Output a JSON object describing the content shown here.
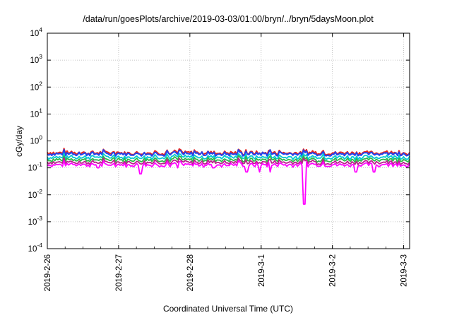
{
  "chart_data": {
    "type": "line",
    "title": "/data/run/goesPlots/archive/2019-03-03/01:00/bryn/../bryn/5daysMoon.plot",
    "xlabel": "Coordinated Universal Time (UTC)",
    "ylabel": "cGy/day",
    "yscale": "log",
    "ylim": [
      0.0001,
      10000
    ],
    "y_ticks": [
      {
        "value": 0.0001,
        "base": "10",
        "exp": "-4"
      },
      {
        "value": 0.001,
        "base": "10",
        "exp": "-3"
      },
      {
        "value": 0.01,
        "base": "10",
        "exp": "-2"
      },
      {
        "value": 0.1,
        "base": "10",
        "exp": "-1"
      },
      {
        "value": 1,
        "base": "10",
        "exp": "0"
      },
      {
        "value": 10,
        "base": "10",
        "exp": "1"
      },
      {
        "value": 100,
        "base": "10",
        "exp": "2"
      },
      {
        "value": 1000,
        "base": "10",
        "exp": "3"
      },
      {
        "value": 10000,
        "base": "10",
        "exp": "4"
      }
    ],
    "xlim": [
      "2019-02-26T00:00",
      "2019-03-03T02:00"
    ],
    "x_ticks": [
      {
        "value": "2019-02-26T00:00",
        "label": "2019-2-26"
      },
      {
        "value": "2019-02-27T00:00",
        "label": "2019-2-27"
      },
      {
        "value": "2019-02-28T00:00",
        "label": "2019-2-28"
      },
      {
        "value": "2019-03-01T00:00",
        "label": "2019-3-1"
      },
      {
        "value": "2019-03-02T00:00",
        "label": "2019-3-2"
      },
      {
        "value": "2019-03-03T00:00",
        "label": "2019-3-3"
      }
    ],
    "grid": true,
    "series": [
      {
        "color": "#e8231e",
        "baseline": 0.36,
        "dips": []
      },
      {
        "color": "#2244ee",
        "baseline": 0.33,
        "dips": []
      },
      {
        "color": "#00c8d2",
        "baseline": 0.25,
        "dips": []
      },
      {
        "color": "#2db84a",
        "baseline": 0.2,
        "dips": []
      },
      {
        "color": "#b8218a",
        "baseline": 0.16,
        "dips": []
      },
      {
        "color": "#ff00ff",
        "baseline": 0.13,
        "dips": [
          {
            "x": "2019-02-26T17:00",
            "y": 0.1
          },
          {
            "x": "2019-02-27T07:30",
            "y": 0.06
          },
          {
            "x": "2019-02-27T20:00",
            "y": 0.1
          },
          {
            "x": "2019-02-28T08:00",
            "y": 0.1
          },
          {
            "x": "2019-02-28T19:00",
            "y": 0.07
          },
          {
            "x": "2019-02-28T23:30",
            "y": 0.07
          },
          {
            "x": "2019-03-01T03:00",
            "y": 0.07
          },
          {
            "x": "2019-03-01T14:30",
            "y": 0.0045
          },
          {
            "x": "2019-03-02T08:00",
            "y": 0.07
          },
          {
            "x": "2019-03-02T14:00",
            "y": 0.07
          }
        ]
      }
    ]
  }
}
